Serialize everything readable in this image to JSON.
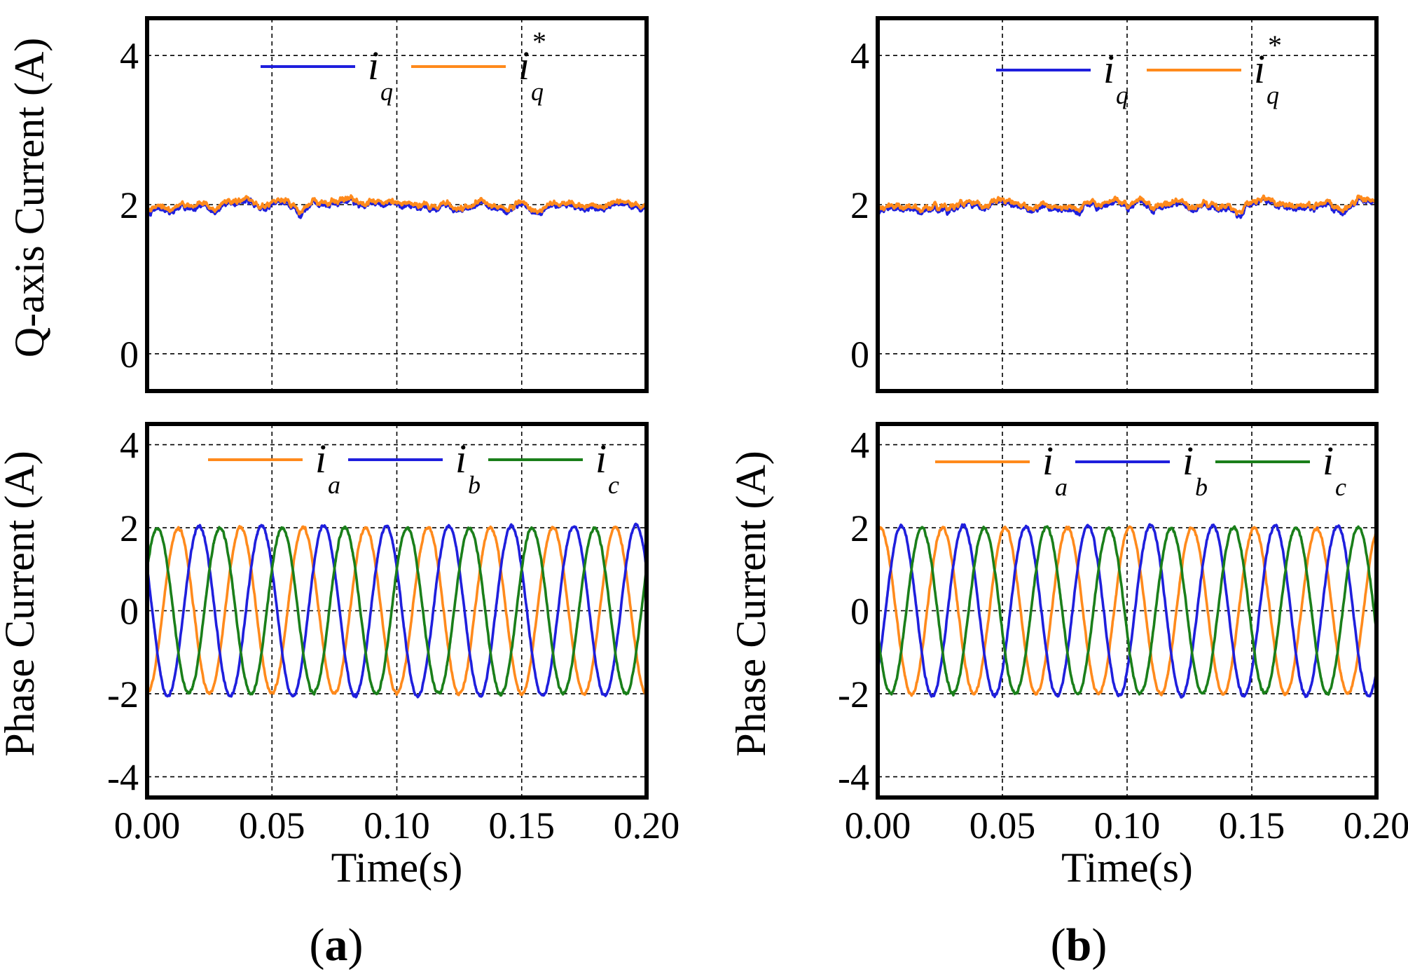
{
  "figure": {
    "panel_a_label": "a",
    "panel_b_label": "b",
    "paren_open": "(",
    "paren_close": ")"
  },
  "colors": {
    "blue": "#1f1fdd",
    "orange": "#ff8a1c",
    "green": "#1a7f1a"
  },
  "chart_data": [
    {
      "id": "a-top",
      "type": "line",
      "panel": "a",
      "title": "",
      "ylabel": "Q-axis Current (A)",
      "xlabel": "",
      "xlim": [
        0,
        0.2
      ],
      "ylim": [
        -0.5,
        4.5
      ],
      "yticks": [
        0,
        2,
        4
      ],
      "ytick_labels": [
        "0",
        "2",
        "4"
      ],
      "xgrid": [
        0.05,
        0.1,
        0.15
      ],
      "xticks_shown": false,
      "legend": {
        "placement": "top-center"
      },
      "series": [
        {
          "name": "iq",
          "symbol": "i",
          "subscript": "q",
          "superscript": "",
          "color": "#1f1fdd",
          "kind": "dc",
          "mean": 1.97,
          "ripple": 0.14,
          "seed": 11
        },
        {
          "name": "iq*",
          "symbol": "i",
          "subscript": "q",
          "superscript": "*",
          "color": "#ff8a1c",
          "kind": "dc",
          "mean": 2.0,
          "ripple": 0.13,
          "seed": 11
        }
      ]
    },
    {
      "id": "a-bottom",
      "type": "line",
      "panel": "a",
      "title": "",
      "ylabel": "Phase Current (A)",
      "xlabel": "Time(s)",
      "xlim": [
        0,
        0.2
      ],
      "ylim": [
        -4.5,
        4.5
      ],
      "yticks": [
        -4,
        -2,
        0,
        2,
        4
      ],
      "ytick_labels": [
        "-4",
        "-2",
        "0",
        "2",
        "4"
      ],
      "xticks": [
        0,
        0.05,
        0.1,
        0.15,
        0.2
      ],
      "xtick_labels": [
        "0.00",
        "0.05",
        "0.10",
        "0.15",
        "0.20"
      ],
      "xgrid": [
        0.05,
        0.1,
        0.15
      ],
      "legend": {
        "placement": "top-center"
      },
      "frequency_hz": 40,
      "series": [
        {
          "name": "ia",
          "symbol": "i",
          "subscript": "a",
          "superscript": "",
          "color": "#ff8a1c",
          "kind": "ac",
          "amplitude": 2.0,
          "phase_deg": -90,
          "seed": 3
        },
        {
          "name": "ib",
          "symbol": "i",
          "subscript": "b",
          "superscript": "",
          "color": "#1f1fdd",
          "kind": "ac",
          "amplitude": 2.05,
          "phase_deg": 150,
          "seed": 5
        },
        {
          "name": "ic",
          "symbol": "i",
          "subscript": "c",
          "superscript": "",
          "color": "#1a7f1a",
          "kind": "ac",
          "amplitude": 2.0,
          "phase_deg": 30,
          "seed": 7
        }
      ]
    },
    {
      "id": "b-top",
      "type": "line",
      "panel": "b",
      "title": "",
      "ylabel": "",
      "xlabel": "",
      "xlim": [
        0,
        0.2
      ],
      "ylim": [
        -0.5,
        4.5
      ],
      "yticks": [
        0,
        2,
        4
      ],
      "ytick_labels": [
        "0",
        "2",
        "4"
      ],
      "xgrid": [
        0.05,
        0.1,
        0.15
      ],
      "xticks_shown": false,
      "legend": {
        "placement": "top-center"
      },
      "series": [
        {
          "name": "iq",
          "symbol": "i",
          "subscript": "q",
          "superscript": "",
          "color": "#1f1fdd",
          "kind": "dc",
          "mean": 1.97,
          "ripple": 0.13,
          "seed": 21
        },
        {
          "name": "iq*",
          "symbol": "i",
          "subscript": "q",
          "superscript": "*",
          "color": "#ff8a1c",
          "kind": "dc",
          "mean": 2.0,
          "ripple": 0.12,
          "seed": 21
        }
      ]
    },
    {
      "id": "b-bottom",
      "type": "line",
      "panel": "b",
      "title": "",
      "ylabel": "Phase Current (A)",
      "xlabel": "Time(s)",
      "xlim": [
        0,
        0.2
      ],
      "ylim": [
        -4.5,
        4.5
      ],
      "yticks": [
        -4,
        -2,
        0,
        2,
        4
      ],
      "ytick_labels": [
        "-4",
        "-2",
        "0",
        "2",
        "4"
      ],
      "xticks": [
        0,
        0.05,
        0.1,
        0.15,
        0.2
      ],
      "xtick_labels": [
        "0.00",
        "0.05",
        "0.10",
        "0.15",
        "0.20"
      ],
      "xgrid": [
        0.05,
        0.1,
        0.15
      ],
      "legend": {
        "placement": "top-center"
      },
      "frequency_hz": 40,
      "series": [
        {
          "name": "ia",
          "symbol": "i",
          "subscript": "a",
          "superscript": "",
          "color": "#ff8a1c",
          "kind": "ac",
          "amplitude": 2.0,
          "phase_deg": 75,
          "seed": 13
        },
        {
          "name": "ib",
          "symbol": "i",
          "subscript": "b",
          "superscript": "",
          "color": "#1f1fdd",
          "kind": "ac",
          "amplitude": 2.05,
          "phase_deg": -45,
          "seed": 17
        },
        {
          "name": "ic",
          "symbol": "i",
          "subscript": "c",
          "superscript": "",
          "color": "#1a7f1a",
          "kind": "ac",
          "amplitude": 2.0,
          "phase_deg": -165,
          "seed": 19
        }
      ]
    }
  ]
}
